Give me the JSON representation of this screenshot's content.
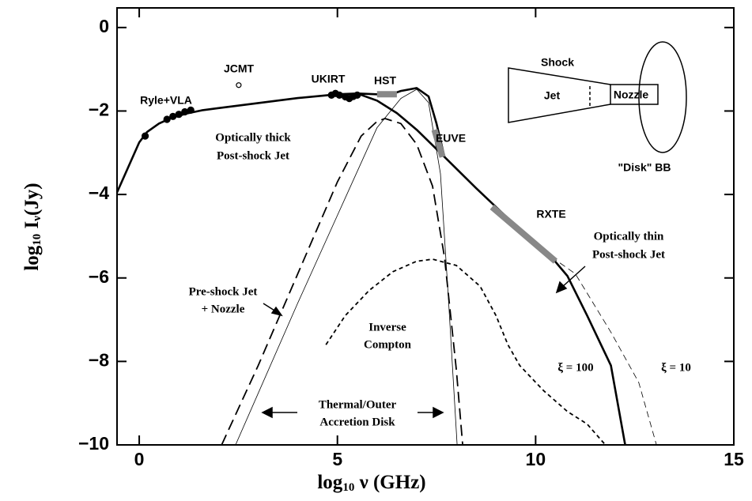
{
  "chart_data": {
    "type": "line",
    "xlabel": [
      "log",
      "10",
      " ν (GHz)"
    ],
    "ylabel": [
      "log",
      "10",
      " I",
      "ν",
      "(Jy)"
    ],
    "xlim": [
      -0.56,
      15
    ],
    "ylim": [
      -10,
      0.47
    ],
    "xticks": [
      0,
      5,
      10,
      15
    ],
    "yticks": [
      {
        "value": -10,
        "label": "−10"
      },
      {
        "value": -8,
        "label": "−8"
      },
      {
        "value": -6,
        "label": "−6"
      },
      {
        "value": -4,
        "label": "−4"
      },
      {
        "value": -2,
        "label": "−2"
      },
      0
    ],
    "series": [
      {
        "style": "thick",
        "color": "#000000",
        "x": [
          -0.56,
          0,
          0.2,
          0.5,
          0.8,
          1.2,
          1.6,
          2,
          3,
          4,
          5,
          5.5,
          6,
          6.5,
          7,
          7.7,
          8.5,
          9.5,
          10.4,
          10.8,
          11.3,
          11.9,
          12.26
        ],
        "values": [
          -3.95,
          -2.75,
          -2.5,
          -2.3,
          -2.17,
          -2.06,
          -1.98,
          -1.93,
          -1.81,
          -1.69,
          -1.6,
          -1.58,
          -1.75,
          -2.05,
          -2.45,
          -3.1,
          -3.85,
          -4.75,
          -5.5,
          -5.95,
          -6.9,
          -8.1,
          -10
        ]
      },
      {
        "style": "thick",
        "color": "#000000",
        "x": [
          5.5,
          6,
          6.3,
          6.6,
          7,
          7.3,
          7.5,
          7.7
        ],
        "values": [
          -1.58,
          -1.6,
          -1.62,
          -1.52,
          -1.45,
          -1.65,
          -2.3,
          -3.1
        ]
      },
      {
        "style": "thin-dashed",
        "color": "#000000",
        "x": [
          10.4,
          11,
          11.9,
          12.6,
          13.05
        ],
        "values": [
          -5.5,
          -5.9,
          -7.3,
          -8.5,
          -10
        ]
      },
      {
        "style": "dashed",
        "color": "#000000",
        "x": [
          2.08,
          3,
          4,
          5,
          5.6,
          6,
          6.2,
          6.6,
          7,
          7.4,
          7.7,
          8,
          8.16
        ],
        "values": [
          -10,
          -8.1,
          -5.9,
          -3.7,
          -2.6,
          -2.25,
          -2.18,
          -2.3,
          -2.8,
          -3.8,
          -5.5,
          -8.2,
          -10
        ]
      },
      {
        "style": "thin",
        "color": "#000000",
        "x": [
          2.43,
          4,
          5,
          6,
          6.6,
          7,
          7.3,
          7.6,
          7.8,
          8.02
        ],
        "values": [
          -10,
          -6.6,
          -4.5,
          -2.4,
          -1.7,
          -1.48,
          -1.8,
          -3.5,
          -6.5,
          -10
        ]
      },
      {
        "style": "dotted",
        "color": "#000000",
        "x": [
          4.71,
          5.2,
          5.8,
          6.4,
          7,
          7.4,
          8,
          8.6,
          9,
          9.3,
          9.6,
          10.2,
          10.8,
          11.3,
          11.76
        ],
        "values": [
          -7.6,
          -6.9,
          -6.3,
          -5.85,
          -5.6,
          -5.55,
          -5.7,
          -6.2,
          -6.9,
          -7.6,
          -8.1,
          -8.7,
          -9.2,
          -9.5,
          -10
        ]
      },
      {
        "style": "band",
        "color": "#888888",
        "x": [
          6,
          6.5
        ],
        "values": [
          -1.6,
          -1.6
        ]
      },
      {
        "style": "band",
        "color": "#888888",
        "x": [
          7.45,
          7.65
        ],
        "values": [
          -2.45,
          -3.1
        ]
      },
      {
        "style": "band",
        "color": "#888888",
        "x": [
          8.9,
          10.5
        ],
        "values": [
          -4.3,
          -5.6
        ]
      }
    ],
    "points": [
      {
        "filled": true,
        "x": [
          0.15,
          0.7,
          0.85,
          1,
          1.15,
          1.3
        ],
        "values": [
          -2.6,
          -2.2,
          -2.13,
          -2.08,
          -2.02,
          -1.98
        ]
      },
      {
        "filled": true,
        "x": [
          4.85,
          4.95,
          5.05,
          5.2,
          5.3,
          5.4,
          5.5
        ],
        "values": [
          -1.62,
          -1.58,
          -1.62,
          -1.66,
          -1.7,
          -1.65,
          -1.62
        ]
      },
      {
        "filled": false,
        "x": [
          2.51
        ],
        "values": [
          -1.38
        ]
      }
    ],
    "annotations": [
      "Ryle+VLA",
      "JCMT",
      "UKIRT",
      "HST",
      "EUVE",
      "RXTE",
      "Optically thick",
      "Post-shock Jet",
      "Optically thin",
      "Post-shock Jet",
      "Pre-shock Jet",
      "+ Nozzle",
      "Inverse",
      "Compton",
      "Thermal/Outer",
      "Accretion Disk",
      "ξ = 100",
      "ξ = 10",
      "Shock",
      "Jet",
      "Nozzle",
      "\"Disk\" BB"
    ]
  }
}
